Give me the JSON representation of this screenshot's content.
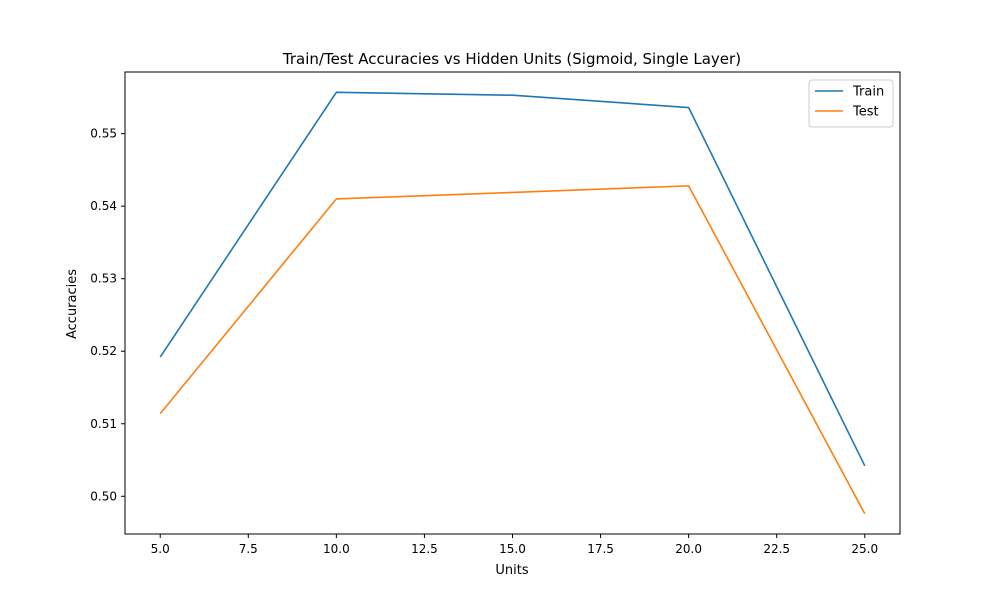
{
  "chart_data": {
    "type": "line",
    "title": "Train/Test Accuracies vs Hidden Units (Sigmoid, Single Layer)",
    "xlabel": "Units",
    "ylabel": "Accuracies",
    "x": [
      5,
      10,
      15,
      20,
      25
    ],
    "series": [
      {
        "name": "Train",
        "color": "#1f77b4",
        "values": [
          0.5192,
          0.5557,
          0.5553,
          0.5536,
          0.5042
        ]
      },
      {
        "name": "Test",
        "color": "#ff7f0e",
        "values": [
          0.5114,
          0.541,
          0.5419,
          0.5428,
          0.4976
        ]
      }
    ],
    "xlim": [
      4.0,
      26.0
    ],
    "ylim": [
      0.4948,
      0.5585
    ],
    "xticks": [
      5.0,
      7.5,
      10.0,
      12.5,
      15.0,
      17.5,
      20.0,
      22.5,
      25.0
    ],
    "xtick_labels": [
      "5.0",
      "7.5",
      "10.0",
      "12.5",
      "15.0",
      "17.5",
      "20.0",
      "22.5",
      "25.0"
    ],
    "yticks": [
      0.5,
      0.51,
      0.52,
      0.53,
      0.54,
      0.55
    ],
    "ytick_labels": [
      "0.50",
      "0.51",
      "0.52",
      "0.53",
      "0.54",
      "0.55"
    ],
    "grid": false,
    "legend_position": "top-right"
  }
}
